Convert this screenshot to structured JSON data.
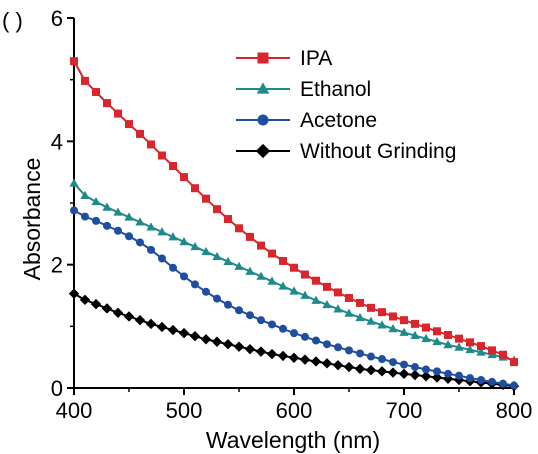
{
  "panel_label": "( )",
  "chart_data": {
    "type": "line",
    "xlabel": "Wavelength (nm)",
    "ylabel": "Absorbance",
    "xlim": [
      400,
      800
    ],
    "ylim": [
      0,
      6
    ],
    "x_ticks": [
      400,
      500,
      600,
      700,
      800
    ],
    "y_ticks": [
      0,
      2,
      4,
      6
    ],
    "x_tick_labels": [
      "400",
      "500",
      "600",
      "700",
      "800"
    ],
    "y_tick_labels": [
      "0",
      "2",
      "4",
      "6"
    ],
    "grid": false,
    "legend_position": "top-right",
    "x_start": 400,
    "x_step": 10,
    "series": [
      {
        "name": "IPA",
        "color": "#d9262c",
        "marker": "square",
        "values": [
          5.3,
          4.98,
          4.8,
          4.62,
          4.45,
          4.28,
          4.12,
          3.95,
          3.77,
          3.6,
          3.42,
          3.24,
          3.07,
          2.9,
          2.74,
          2.59,
          2.45,
          2.31,
          2.18,
          2.06,
          1.95,
          1.84,
          1.74,
          1.64,
          1.55,
          1.46,
          1.38,
          1.3,
          1.23,
          1.16,
          1.1,
          1.04,
          0.98,
          0.92,
          0.86,
          0.8,
          0.74,
          0.68,
          0.61,
          0.54,
          0.42
        ]
      },
      {
        "name": "Ethanol",
        "color": "#1f8a8a",
        "marker": "triangle",
        "values": [
          3.32,
          3.12,
          3.02,
          2.93,
          2.85,
          2.77,
          2.69,
          2.61,
          2.53,
          2.45,
          2.37,
          2.29,
          2.21,
          2.13,
          2.05,
          1.97,
          1.89,
          1.81,
          1.73,
          1.65,
          1.57,
          1.5,
          1.42,
          1.35,
          1.28,
          1.21,
          1.14,
          1.08,
          1.02,
          0.96,
          0.9,
          0.85,
          0.8,
          0.75,
          0.7,
          0.66,
          0.62,
          0.58,
          0.54,
          0.5,
          0.45
        ]
      },
      {
        "name": "Acetone",
        "color": "#1f4e9e",
        "marker": "circle",
        "values": [
          2.88,
          2.78,
          2.71,
          2.63,
          2.55,
          2.46,
          2.36,
          2.24,
          2.1,
          1.95,
          1.81,
          1.68,
          1.56,
          1.45,
          1.35,
          1.26,
          1.18,
          1.1,
          1.03,
          0.96,
          0.89,
          0.83,
          0.77,
          0.71,
          0.66,
          0.61,
          0.56,
          0.51,
          0.47,
          0.42,
          0.38,
          0.34,
          0.3,
          0.27,
          0.23,
          0.2,
          0.16,
          0.13,
          0.1,
          0.07,
          0.04
        ]
      },
      {
        "name": "Without Grinding",
        "color": "#000000",
        "marker": "diamond",
        "values": [
          1.53,
          1.43,
          1.36,
          1.29,
          1.22,
          1.16,
          1.1,
          1.04,
          0.99,
          0.94,
          0.89,
          0.84,
          0.79,
          0.75,
          0.71,
          0.67,
          0.63,
          0.59,
          0.55,
          0.52,
          0.49,
          0.46,
          0.43,
          0.4,
          0.37,
          0.34,
          0.31,
          0.29,
          0.27,
          0.25,
          0.23,
          0.21,
          0.19,
          0.17,
          0.15,
          0.13,
          0.11,
          0.09,
          0.07,
          0.05,
          0.03
        ]
      }
    ]
  }
}
